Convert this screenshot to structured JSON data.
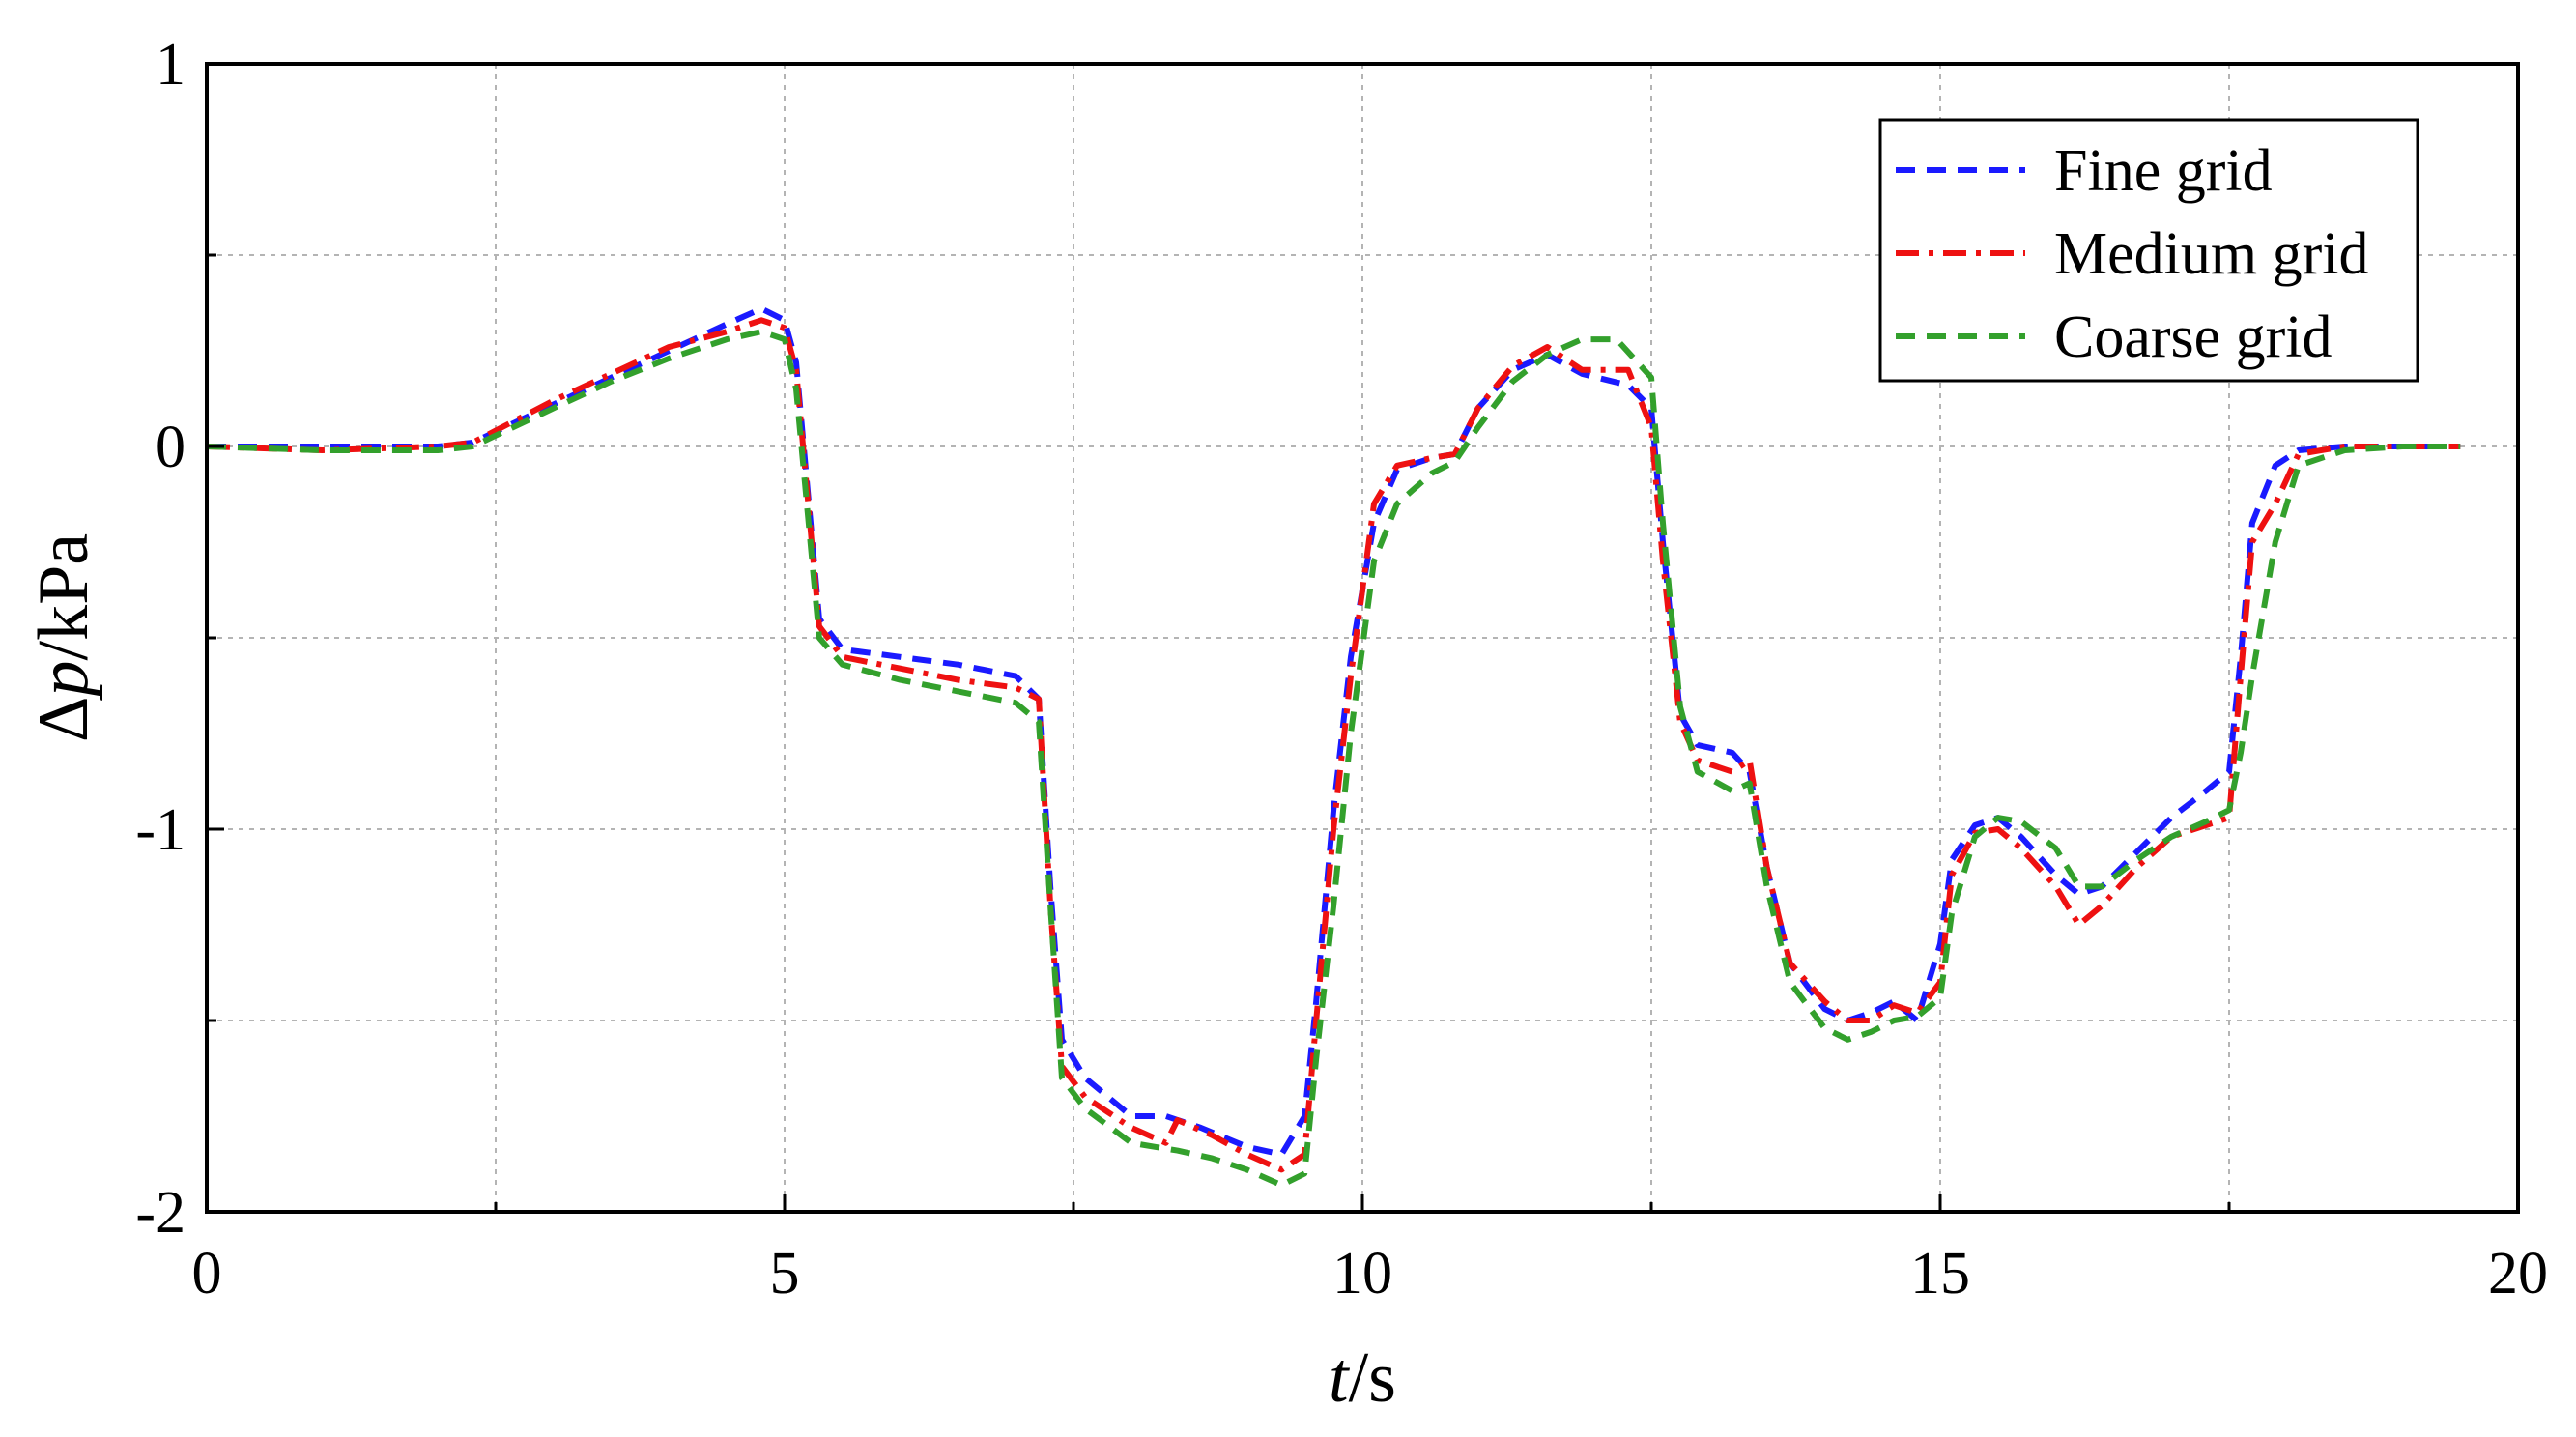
{
  "chart_data": {
    "type": "line",
    "xlabel_italic": "t",
    "xlabel_unit": "/s",
    "ylabel_prefix": "Δ",
    "ylabel_italic": "p",
    "ylabel_unit": "/kPa",
    "xlim": [
      0,
      20
    ],
    "ylim": [
      -2,
      1
    ],
    "xticks": [
      0,
      5,
      10,
      15,
      20
    ],
    "yticks": [
      -2,
      -1,
      0,
      1
    ],
    "grid": true,
    "legend_position": "top-right",
    "series": [
      {
        "name": "Fine grid",
        "color": "#1a1aff",
        "dash": "dashed",
        "x": [
          0,
          1,
          2,
          2.3,
          3,
          3.5,
          4,
          4.5,
          4.8,
          5.0,
          5.1,
          5.3,
          5.5,
          6,
          6.5,
          7.0,
          7.2,
          7.3,
          7.4,
          7.6,
          8.0,
          8.3,
          8.6,
          9.0,
          9.3,
          9.5,
          9.6,
          9.75,
          9.9,
          10.1,
          10.3,
          10.6,
          10.8,
          11.0,
          11.3,
          11.6,
          11.9,
          12.3,
          12.5,
          12.6,
          12.75,
          12.9,
          13.2,
          13.35,
          13.5,
          13.7,
          14.0,
          14.2,
          14.4,
          14.6,
          14.8,
          15.0,
          15.1,
          15.3,
          15.5,
          15.7,
          16.0,
          16.2,
          16.4,
          16.7,
          17.0,
          17.3,
          17.5,
          17.6,
          17.7,
          17.9,
          18.1,
          18.5,
          19.0,
          19.5
        ],
        "y": [
          0,
          0,
          0,
          0.01,
          0.11,
          0.18,
          0.25,
          0.32,
          0.36,
          0.33,
          0.22,
          -0.45,
          -0.53,
          -0.55,
          -0.57,
          -0.6,
          -0.66,
          -1.15,
          -1.55,
          -1.65,
          -1.75,
          -1.75,
          -1.78,
          -1.83,
          -1.85,
          -1.75,
          -1.45,
          -0.95,
          -0.55,
          -0.2,
          -0.06,
          -0.03,
          -0.02,
          0.1,
          0.2,
          0.24,
          0.19,
          0.16,
          0.1,
          -0.25,
          -0.7,
          -0.78,
          -0.8,
          -0.85,
          -1.1,
          -1.35,
          -1.47,
          -1.5,
          -1.48,
          -1.45,
          -1.5,
          -1.3,
          -1.08,
          -0.99,
          -0.97,
          -1.02,
          -1.12,
          -1.17,
          -1.15,
          -1.06,
          -0.97,
          -0.9,
          -0.85,
          -0.55,
          -0.2,
          -0.05,
          -0.01,
          0,
          0,
          0
        ]
      },
      {
        "name": "Medium grid",
        "color": "#ee1111",
        "dash": "dashdot",
        "x": [
          0,
          1,
          2,
          2.3,
          3,
          3.5,
          4,
          4.5,
          4.8,
          5.0,
          5.1,
          5.3,
          5.5,
          6,
          6.5,
          7.0,
          7.2,
          7.3,
          7.4,
          7.6,
          8.0,
          8.3,
          8.4,
          8.7,
          9.0,
          9.3,
          9.5,
          9.6,
          9.75,
          9.9,
          10.1,
          10.3,
          10.6,
          10.8,
          11.0,
          11.3,
          11.6,
          11.9,
          12.3,
          12.5,
          12.6,
          12.75,
          12.9,
          13.2,
          13.35,
          13.5,
          13.7,
          14.0,
          14.2,
          14.4,
          14.6,
          14.8,
          15.0,
          15.1,
          15.3,
          15.5,
          15.7,
          16.0,
          16.2,
          16.4,
          16.7,
          17.0,
          17.3,
          17.5,
          17.6,
          17.7,
          17.9,
          18.1,
          18.5,
          19.0,
          19.5
        ],
        "y": [
          0,
          -0.01,
          0,
          0.01,
          0.12,
          0.19,
          0.26,
          0.3,
          0.33,
          0.31,
          0.2,
          -0.47,
          -0.55,
          -0.58,
          -0.61,
          -0.63,
          -0.66,
          -1.2,
          -1.62,
          -1.7,
          -1.78,
          -1.82,
          -1.76,
          -1.8,
          -1.85,
          -1.89,
          -1.85,
          -1.5,
          -1.0,
          -0.6,
          -0.15,
          -0.05,
          -0.03,
          -0.02,
          0.1,
          0.21,
          0.26,
          0.2,
          0.2,
          0.05,
          -0.3,
          -0.72,
          -0.82,
          -0.85,
          -0.82,
          -1.1,
          -1.35,
          -1.45,
          -1.5,
          -1.5,
          -1.46,
          -1.48,
          -1.4,
          -1.12,
          -1.01,
          -1.0,
          -1.05,
          -1.15,
          -1.25,
          -1.2,
          -1.1,
          -1.02,
          -0.99,
          -0.97,
          -0.6,
          -0.25,
          -0.15,
          -0.02,
          0,
          0,
          0
        ]
      },
      {
        "name": "Coarse grid",
        "color": "#33a02c",
        "dash": "dashed",
        "x": [
          0,
          1,
          2,
          2.3,
          3,
          3.5,
          4,
          4.5,
          4.8,
          5.0,
          5.1,
          5.3,
          5.5,
          6,
          6.5,
          7.0,
          7.2,
          7.3,
          7.4,
          7.6,
          8.0,
          8.4,
          8.7,
          9.0,
          9.3,
          9.5,
          9.6,
          9.75,
          9.9,
          10.1,
          10.3,
          10.6,
          10.8,
          11.0,
          11.3,
          11.6,
          11.9,
          12.2,
          12.5,
          12.6,
          12.75,
          12.9,
          13.2,
          13.35,
          13.5,
          13.7,
          14.0,
          14.2,
          14.4,
          14.6,
          14.8,
          15.0,
          15.1,
          15.3,
          15.5,
          15.7,
          16.0,
          16.2,
          16.4,
          16.7,
          17.0,
          17.3,
          17.5,
          17.6,
          17.7,
          17.9,
          18.1,
          18.5,
          19.0,
          19.5
        ],
        "y": [
          0,
          -0.01,
          -0.01,
          0,
          0.1,
          0.17,
          0.23,
          0.28,
          0.3,
          0.28,
          0.15,
          -0.5,
          -0.57,
          -0.61,
          -0.64,
          -0.67,
          -0.72,
          -1.2,
          -1.65,
          -1.73,
          -1.82,
          -1.84,
          -1.86,
          -1.89,
          -1.93,
          -1.9,
          -1.6,
          -1.2,
          -0.75,
          -0.3,
          -0.15,
          -0.07,
          -0.04,
          0.05,
          0.17,
          0.24,
          0.28,
          0.28,
          0.18,
          -0.2,
          -0.68,
          -0.85,
          -0.9,
          -0.88,
          -1.15,
          -1.4,
          -1.52,
          -1.55,
          -1.53,
          -1.5,
          -1.49,
          -1.44,
          -1.22,
          -1.02,
          -0.97,
          -0.98,
          -1.05,
          -1.15,
          -1.15,
          -1.08,
          -1.02,
          -0.98,
          -0.95,
          -0.8,
          -0.6,
          -0.25,
          -0.05,
          -0.01,
          0,
          0
        ]
      }
    ]
  }
}
